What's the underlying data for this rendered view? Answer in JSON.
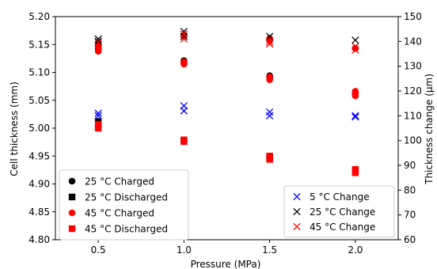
{
  "chart_data": {
    "type": "scatter",
    "xlabel": "Pressure (MPa)",
    "ylabel_left": "Cell thickness (mm)",
    "ylabel_right": "Thickness change (μm)",
    "xlim": [
      0.25,
      2.25
    ],
    "ylim_left": [
      4.8,
      5.2
    ],
    "ylim_right": [
      60,
      150
    ],
    "x_ticks": [
      0.5,
      1.0,
      1.5,
      2.0
    ],
    "x_tick_labels": [
      "0.5",
      "1.0",
      "1.5",
      "2.0"
    ],
    "y_left_ticks": [
      4.8,
      4.85,
      4.9,
      4.95,
      5.0,
      5.05,
      5.1,
      5.15,
      5.2
    ],
    "y_left_tick_labels": [
      "4.80",
      "4.85",
      "4.90",
      "4.95",
      "5.00",
      "5.05",
      "5.10",
      "5.15",
      "5.20"
    ],
    "y_right_ticks": [
      60,
      70,
      80,
      90,
      100,
      110,
      120,
      130,
      140,
      150
    ],
    "y_right_tick_labels": [
      "60",
      "70",
      "80",
      "90",
      "100",
      "110",
      "120",
      "130",
      "140",
      "150"
    ],
    "grid": false,
    "series_left": [
      {
        "name": "25 °C Charged",
        "marker": "circle",
        "color": "#000000",
        "points": [
          [
            0.5,
            5.143
          ],
          [
            0.5,
            5.146
          ],
          [
            0.5,
            5.15
          ],
          [
            1.0,
            5.118
          ],
          [
            1.0,
            5.121
          ],
          [
            1.5,
            5.091
          ],
          [
            1.5,
            5.094
          ],
          [
            2.0,
            5.061
          ],
          [
            2.0,
            5.063
          ]
        ]
      },
      {
        "name": "25 °C Discharged",
        "marker": "square",
        "color": "#000000",
        "points": [
          [
            0.5,
            5.012
          ],
          [
            1.0,
            4.978
          ],
          [
            1.5,
            4.948
          ],
          [
            2.0,
            4.924
          ]
        ]
      },
      {
        "name": "45 °C Charged",
        "marker": "circle",
        "color": "#ff0000",
        "points": [
          [
            0.5,
            5.138
          ],
          [
            0.5,
            5.142
          ],
          [
            0.5,
            5.147
          ],
          [
            1.0,
            5.115
          ],
          [
            1.0,
            5.119
          ],
          [
            1.0,
            5.165
          ],
          [
            1.5,
            5.087
          ],
          [
            1.5,
            5.092
          ],
          [
            1.5,
            5.157
          ],
          [
            1.5,
            5.161
          ],
          [
            2.0,
            5.058
          ],
          [
            2.0,
            5.062
          ],
          [
            2.0,
            5.066
          ],
          [
            2.0,
            5.143
          ]
        ]
      },
      {
        "name": "45 °C Discharged",
        "marker": "square",
        "color": "#ff0000",
        "points": [
          [
            0.5,
            5.0
          ],
          [
            0.5,
            5.003
          ],
          [
            0.5,
            5.007
          ],
          [
            1.0,
            4.976
          ],
          [
            1.0,
            4.979
          ],
          [
            1.5,
            4.944
          ],
          [
            1.5,
            4.947
          ],
          [
            1.5,
            4.95
          ],
          [
            2.0,
            4.92
          ],
          [
            2.0,
            4.923
          ],
          [
            2.0,
            4.926
          ]
        ]
      }
    ],
    "series_right": [
      {
        "name": "5 °C Change",
        "marker": "x",
        "color": "#0000ff",
        "points": [
          [
            0.5,
            110.0
          ],
          [
            0.5,
            111.0
          ],
          [
            1.0,
            112.0
          ],
          [
            1.0,
            114.0
          ],
          [
            1.5,
            110.0
          ],
          [
            1.5,
            111.5
          ],
          [
            2.0,
            109.5
          ],
          [
            2.0,
            110.0
          ]
        ]
      },
      {
        "name": "25 °C Change",
        "marker": "x",
        "color": "#000000",
        "points": [
          [
            0.5,
            140.0
          ],
          [
            0.5,
            141.0
          ],
          [
            1.0,
            142.0
          ],
          [
            1.0,
            144.0
          ],
          [
            1.5,
            139.0
          ],
          [
            1.5,
            142.0
          ],
          [
            2.0,
            138.0
          ],
          [
            2.0,
            140.5
          ]
        ]
      },
      {
        "name": "45 °C Change",
        "marker": "x",
        "color": "#ff0000",
        "points": [
          [
            0.5,
            138.0
          ],
          [
            0.5,
            139.5
          ],
          [
            1.0,
            141.0
          ],
          [
            1.0,
            143.0
          ],
          [
            1.5,
            139.0
          ],
          [
            1.5,
            140.0
          ],
          [
            2.0,
            136.5
          ],
          [
            2.0,
            138.0
          ]
        ]
      }
    ],
    "legend_left": {
      "placement": "lower-left",
      "entries": [
        "25 °C Charged",
        "25 °C Discharged",
        "45 °C Charged",
        "45 °C Discharged"
      ]
    },
    "legend_right": {
      "placement": "lower-right",
      "entries": [
        "5 °C Change",
        "25 °C Change",
        "45 °C Change"
      ]
    }
  }
}
